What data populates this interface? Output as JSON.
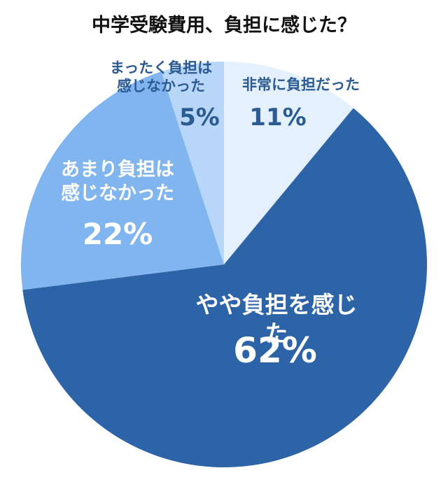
{
  "chart_data": {
    "type": "pie",
    "title": "中学受験費用、負担に感じた？",
    "categories": [
      "非常に負担だった",
      "やや負担を感じた",
      "あまり負担は\n感じなかった",
      "まったく負担は\n感じなかった"
    ],
    "values": [
      11,
      62,
      22,
      5
    ],
    "value_labels": [
      "11%",
      "62%",
      "22%",
      "5%"
    ],
    "colors": [
      "#e4f1fd",
      "#2d63a7",
      "#80b5f0",
      "#b7d6f8"
    ]
  }
}
